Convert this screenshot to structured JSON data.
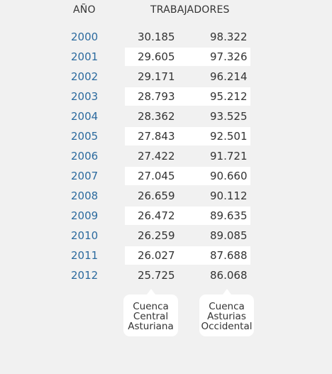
{
  "header": {
    "year_label": "AÑO",
    "workers_label": "TRABAJADORES"
  },
  "rows": [
    {
      "year": "2000",
      "central": "30.185",
      "occidental": "98.322"
    },
    {
      "year": "2001",
      "central": "29.605",
      "occidental": "97.326"
    },
    {
      "year": "2002",
      "central": "29.171",
      "occidental": "96.214"
    },
    {
      "year": "2003",
      "central": "28.793",
      "occidental": "95.212"
    },
    {
      "year": "2004",
      "central": "28.362",
      "occidental": "93.525"
    },
    {
      "year": "2005",
      "central": "27.843",
      "occidental": "92.501"
    },
    {
      "year": "2006",
      "central": "27.422",
      "occidental": "91.721"
    },
    {
      "year": "2007",
      "central": "27.045",
      "occidental": "90.660"
    },
    {
      "year": "2008",
      "central": "26.659",
      "occidental": "90.112"
    },
    {
      "year": "2009",
      "central": "26.472",
      "occidental": "89.635"
    },
    {
      "year": "2010",
      "central": "26.259",
      "occidental": "89.085"
    },
    {
      "year": "2011",
      "central": "26.027",
      "occidental": "87.688"
    },
    {
      "year": "2012",
      "central": "25.725",
      "occidental": "86.068"
    }
  ],
  "labels": {
    "central": [
      "Cuenca",
      "Central",
      "Asturiana"
    ],
    "occidental": [
      "Cuenca",
      "Asturias",
      "Occidental"
    ]
  },
  "colors": {
    "year": "#2b6a9e",
    "band": "#ffffff",
    "background": "#f1f1f1"
  }
}
